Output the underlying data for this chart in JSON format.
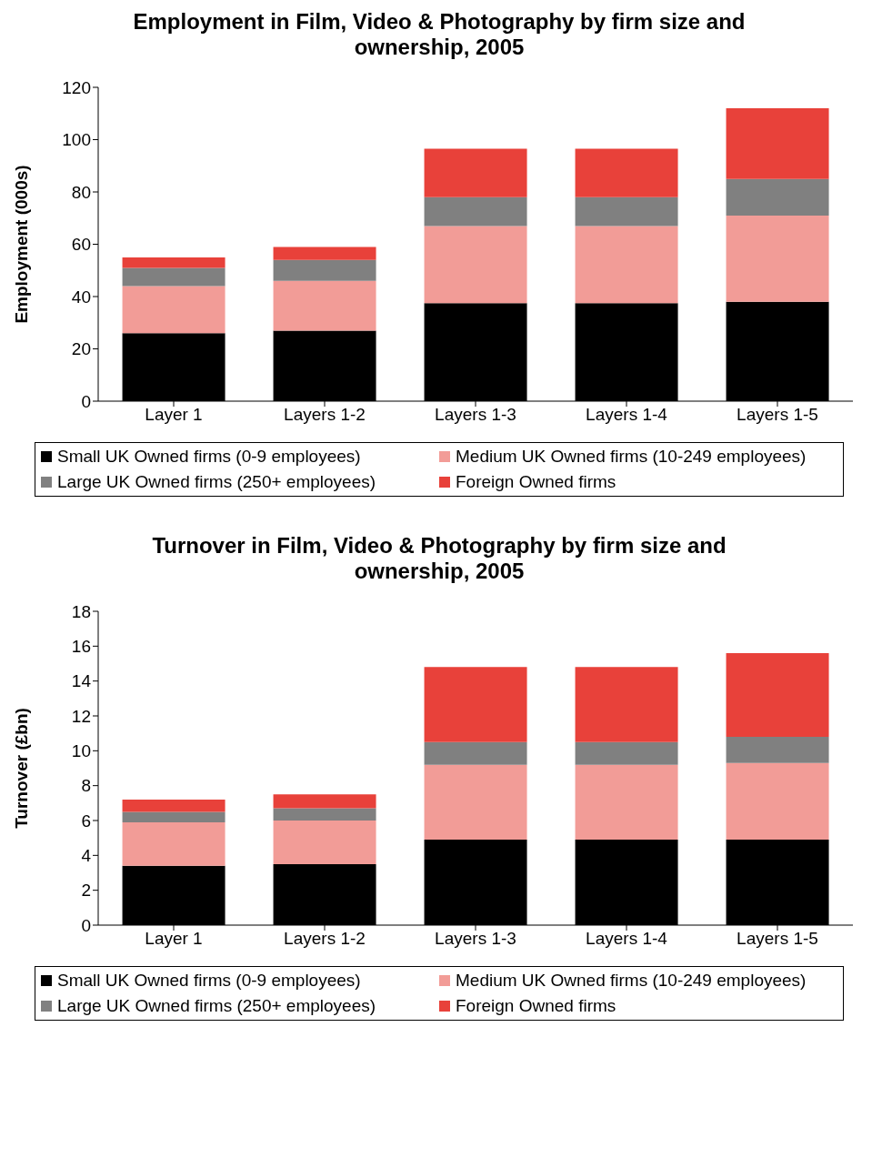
{
  "chart_data": [
    {
      "type": "bar",
      "title": "Employment in Film, Video & Photography by firm size and ownership, 2005",
      "ylabel": "Employment (000s)",
      "categories": [
        "Layer 1",
        "Layers 1-2",
        "Layers 1-3",
        "Layers 1-4",
        "Layers 1-5"
      ],
      "stacked": true,
      "series": [
        {
          "name": "Small UK Owned firms (0-9 employees)",
          "color": "#000000",
          "values": [
            26,
            27,
            37.5,
            37.5,
            38
          ]
        },
        {
          "name": "Medium UK Owned firms (10-249 employees)",
          "color": "#f29c97",
          "values": [
            18,
            19,
            29.5,
            29.5,
            33
          ]
        },
        {
          "name": "Large UK Owned firms (250+ employees)",
          "color": "#808080",
          "values": [
            7,
            8,
            11,
            11,
            14
          ]
        },
        {
          "name": "Foreign Owned firms",
          "color": "#e8413a",
          "values": [
            4,
            5,
            18.5,
            18.5,
            27
          ]
        }
      ],
      "ylim": [
        0,
        120
      ],
      "yticks": [
        0,
        20,
        40,
        60,
        80,
        100,
        120
      ],
      "grid": false,
      "legend": "bottom"
    },
    {
      "type": "bar",
      "title": "Turnover in Film, Video & Photography by firm size and ownership, 2005",
      "ylabel": "Turnover (£bn)",
      "categories": [
        "Layer 1",
        "Layers 1-2",
        "Layers 1-3",
        "Layers 1-4",
        "Layers 1-5"
      ],
      "stacked": true,
      "series": [
        {
          "name": "Small UK Owned firms (0-9 employees)",
          "color": "#000000",
          "values": [
            3.4,
            3.5,
            4.9,
            4.9,
            4.9
          ]
        },
        {
          "name": "Medium UK Owned firms (10-249 employees)",
          "color": "#f29c97",
          "values": [
            2.5,
            2.5,
            4.3,
            4.3,
            4.4
          ]
        },
        {
          "name": "Large UK Owned firms (250+ employees)",
          "color": "#808080",
          "values": [
            0.6,
            0.7,
            1.3,
            1.3,
            1.5
          ]
        },
        {
          "name": "Foreign Owned firms",
          "color": "#e8413a",
          "values": [
            0.7,
            0.8,
            4.3,
            4.3,
            4.8
          ]
        }
      ],
      "ylim": [
        0,
        18
      ],
      "yticks": [
        0,
        2,
        4,
        6,
        8,
        10,
        12,
        14,
        16,
        18
      ],
      "grid": false,
      "legend": "bottom"
    }
  ]
}
